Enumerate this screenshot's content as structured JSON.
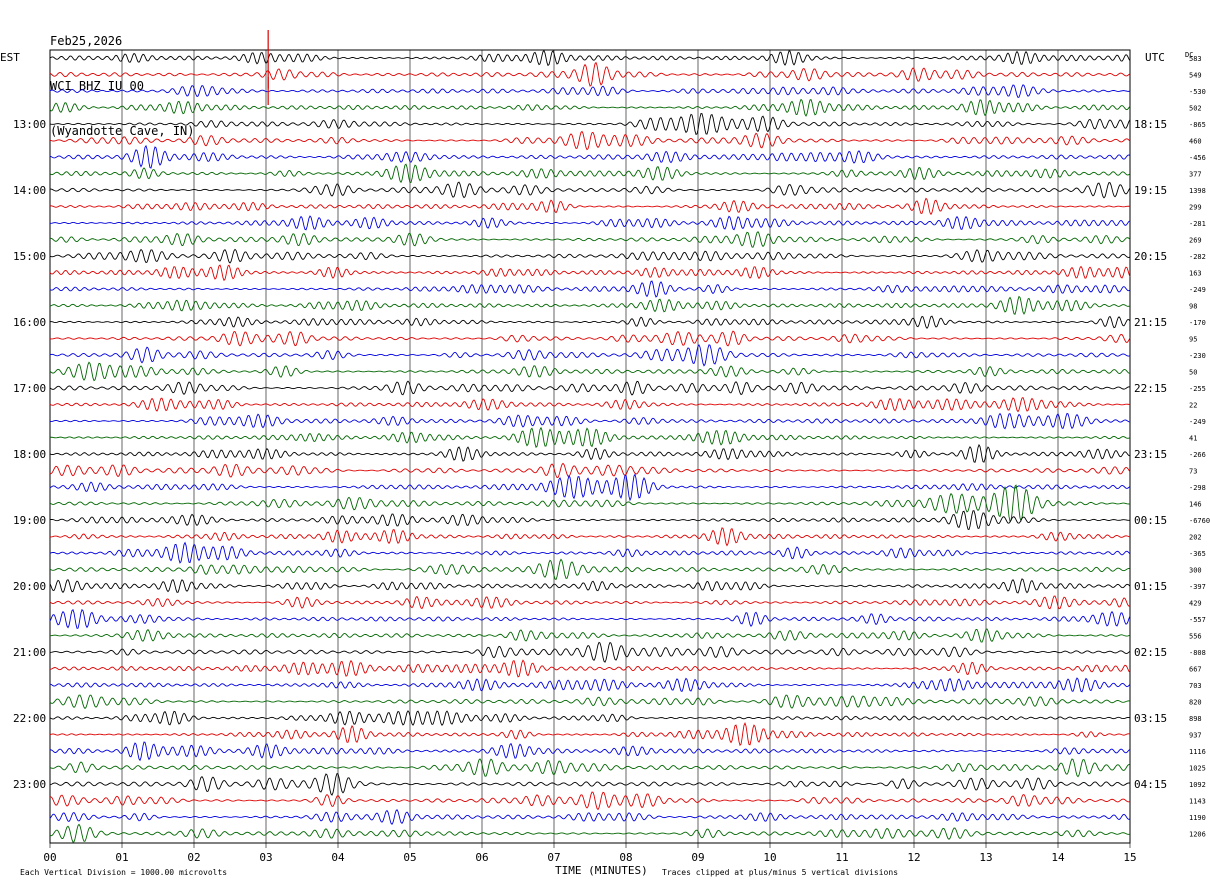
{
  "header": {
    "date": "Feb25,2026",
    "station": "WCI BHZ IU 00",
    "location": "(Wyandotte Cave, IN)"
  },
  "axes": {
    "left_zone": "EST",
    "right_zone": "UTC",
    "dc_label": "DC",
    "xlabel": "TIME (MINUTES)",
    "footer_left": "Each Vertical Division = 1000.00 microvolts",
    "footer_right": "Traces clipped at plus/minus 5 vertical divisions"
  },
  "colors": {
    "cycle": [
      "#000000",
      "#dd0000",
      "#0000dd",
      "#006600"
    ],
    "event": "#dd0000",
    "grid": "#000000"
  },
  "chart_data": {
    "type": "line",
    "title": "WCI BHZ IU 00 (Wyandotte Cave, IN)",
    "xlabel": "TIME (MINUTES)",
    "xlim": [
      0,
      15
    ],
    "x_ticks": [
      "00",
      "01",
      "02",
      "03",
      "04",
      "05",
      "06",
      "07",
      "08",
      "09",
      "10",
      "11",
      "12",
      "13",
      "14",
      "15"
    ],
    "trace_minutes": 15,
    "rows": 48,
    "left_hour_labels": [
      {
        "row": 4,
        "text": "13:00"
      },
      {
        "row": 8,
        "text": "14:00"
      },
      {
        "row": 12,
        "text": "15:00"
      },
      {
        "row": 16,
        "text": "16:00"
      },
      {
        "row": 20,
        "text": "17:00"
      },
      {
        "row": 24,
        "text": "18:00"
      },
      {
        "row": 28,
        "text": "19:00"
      },
      {
        "row": 32,
        "text": "20:00"
      },
      {
        "row": 36,
        "text": "21:00"
      },
      {
        "row": 40,
        "text": "22:00"
      },
      {
        "row": 44,
        "text": "23:00"
      }
    ],
    "right_hour_labels": [
      {
        "row": 4,
        "text": "18:15"
      },
      {
        "row": 8,
        "text": "19:15"
      },
      {
        "row": 12,
        "text": "20:15"
      },
      {
        "row": 16,
        "text": "21:15"
      },
      {
        "row": 20,
        "text": "22:15"
      },
      {
        "row": 24,
        "text": "23:15"
      },
      {
        "row": 28,
        "text": "00:15"
      },
      {
        "row": 32,
        "text": "01:15"
      },
      {
        "row": 36,
        "text": "02:15"
      },
      {
        "row": 40,
        "text": "03:15"
      },
      {
        "row": 44,
        "text": "04:15"
      }
    ],
    "dc_offsets": [
      "583",
      "549",
      "-530",
      "502",
      "-865",
      "460",
      "-456",
      "377",
      "1398",
      "299",
      "-281",
      "269",
      "-282",
      "163",
      "-249",
      "98",
      "-170",
      "95",
      "-230",
      "50",
      "-255",
      "22",
      "-249",
      "41",
      "-266",
      "73",
      "-298",
      "146",
      "-6760",
      "202",
      "-365",
      "300",
      "-397",
      "429",
      "-557",
      "556",
      "-808",
      "667",
      "703",
      "820",
      "898",
      "937",
      "1116",
      "1025",
      "1092",
      "1143",
      "1190",
      "1206"
    ],
    "events": [
      {
        "row": 1,
        "minute": 3.03,
        "note": "spike"
      },
      {
        "row": 2,
        "minute": 3.03,
        "note": "spike"
      }
    ]
  }
}
